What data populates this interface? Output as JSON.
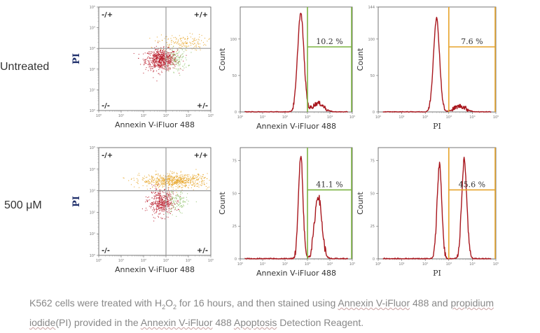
{
  "row_labels": [
    "Untreated",
    "500 μM"
  ],
  "caption": {
    "p1": "K562 cells were treated with H",
    "sub1": "2",
    "p2": "O",
    "sub2": "2",
    "p3": " for 16 hours, and then stained using ",
    "u1": "Annexin V-iFluor",
    "p4": " 488 and ",
    "u2": "propidium",
    "p5": " ",
    "u3": "iodide",
    "p6": "(PI) provided in the ",
    "u4": "Annexin V-iFluor",
    "p7": " 488 ",
    "u5": "Apoptosis",
    "p8": " Detection Reagent."
  },
  "colors": {
    "dots_red": "#b81c2b",
    "dots_orange": "#e7a629",
    "dots_green": "#8fc26a",
    "hist_line": "#a8161d",
    "gate_green": "#7cb342",
    "gate_orange": "#e7a42b",
    "quadrant_line": "#999999"
  },
  "chart_data": [
    {
      "type": "scatter",
      "panel": "untreated-dot-plot",
      "xlabel": "Annexin V-iFluor 488",
      "ylabel": "PI",
      "scale": "log",
      "ticks": [
        "10⁰",
        "10¹",
        "10²",
        "10³",
        "10⁴",
        "10⁵"
      ],
      "quadrants": {
        "top_left": "-/+",
        "top_right": "+/+",
        "bottom_left": "-/-",
        "bottom_right": "+/-"
      },
      "quadrant_gate": {
        "x": 1000,
        "y": 1000
      },
      "populations": [
        {
          "color": "red",
          "center": [
            600,
            300
          ],
          "spread": [
            0.22,
            0.16
          ],
          "count": 700
        },
        {
          "color": "orange",
          "center": [
            5000,
            2000
          ],
          "spread": [
            0.25,
            0.12
          ],
          "count": 160
        },
        {
          "color": "green",
          "center": [
            3000,
            300
          ],
          "spread": [
            0.15,
            0.18
          ],
          "count": 120
        }
      ]
    },
    {
      "type": "histogram",
      "panel": "untreated-annexin-histogram",
      "xlabel": "Annexin V-iFluor 488",
      "ylabel": "Count",
      "scale": "log",
      "ticks": [
        "10⁰",
        "10¹",
        "10²",
        "10³",
        "10⁴",
        "10⁵"
      ],
      "yticks": [
        "0",
        "50",
        "100"
      ],
      "ylim": [
        0,
        144
      ],
      "peaks": [
        {
          "center": 500,
          "height": 135,
          "width": 0.14
        },
        {
          "center": 3000,
          "height": 12,
          "width": 0.25
        }
      ],
      "gate": {
        "x_min": 1000,
        "x_max": 100000
      },
      "gate_label": "10.2 %"
    },
    {
      "type": "histogram",
      "panel": "untreated-pi-histogram",
      "xlabel": "PI",
      "ylabel": "Count",
      "scale": "log",
      "ticks": [
        "10⁰",
        "10¹",
        "10²",
        "10³",
        "10⁴",
        "10⁵"
      ],
      "yticks": [
        "0",
        "50",
        "100",
        "144"
      ],
      "ylim": [
        0,
        144
      ],
      "peaks": [
        {
          "center": 300,
          "height": 128,
          "width": 0.13
        },
        {
          "center": 3000,
          "height": 8,
          "width": 0.25
        }
      ],
      "gate": {
        "x_min": 1000,
        "x_max": 100000
      },
      "gate_label": "7.6 %"
    },
    {
      "type": "scatter",
      "panel": "treated-dot-plot",
      "xlabel": "Annexin V-iFluor 488",
      "ylabel": "PI",
      "scale": "log",
      "ticks": [
        "10⁰",
        "10¹",
        "10²",
        "10³",
        "10⁴",
        "10⁵"
      ],
      "quadrants": {
        "top_left": "-/+",
        "top_right": "+/+",
        "bottom_left": "-/-",
        "bottom_right": "+/-"
      },
      "quadrant_gate": {
        "x": 1000,
        "y": 1000
      },
      "populations": [
        {
          "color": "red",
          "center": [
            600,
            300
          ],
          "spread": [
            0.18,
            0.18
          ],
          "count": 450
        },
        {
          "color": "orange",
          "center": [
            2500,
            3000
          ],
          "spread": [
            0.35,
            0.1
          ],
          "count": 650
        },
        {
          "color": "green",
          "center": [
            3000,
            300
          ],
          "spread": [
            0.15,
            0.18
          ],
          "count": 110
        }
      ]
    },
    {
      "type": "histogram",
      "panel": "treated-annexin-histogram",
      "xlabel": "Annexin V-iFluor 488",
      "ylabel": "Count",
      "scale": "log",
      "ticks": [
        "10⁰",
        "10¹",
        "10²",
        "10³",
        "10⁴",
        "10⁵"
      ],
      "yticks": [
        "0",
        "25",
        "50",
        "75"
      ],
      "ylim": [
        0,
        85
      ],
      "peaks": [
        {
          "center": 500,
          "height": 80,
          "width": 0.1
        },
        {
          "center": 3000,
          "height": 48,
          "width": 0.16
        }
      ],
      "gate": {
        "x_min": 1000,
        "x_max": 100000
      },
      "gate_label": "41.1 %"
    },
    {
      "type": "histogram",
      "panel": "treated-pi-histogram",
      "xlabel": "PI",
      "ylabel": "Count",
      "scale": "log",
      "ticks": [
        "10⁰",
        "10¹",
        "10²",
        "10³",
        "10⁴",
        "10⁵"
      ],
      "yticks": [
        "0",
        "25",
        "50",
        "75"
      ],
      "ylim": [
        0,
        85
      ],
      "peaks": [
        {
          "center": 400,
          "height": 72,
          "width": 0.1
        },
        {
          "center": 4500,
          "height": 75,
          "width": 0.11
        }
      ],
      "gate": {
        "x_min": 1000,
        "x_max": 100000
      },
      "gate_label": "45.6 %"
    }
  ]
}
